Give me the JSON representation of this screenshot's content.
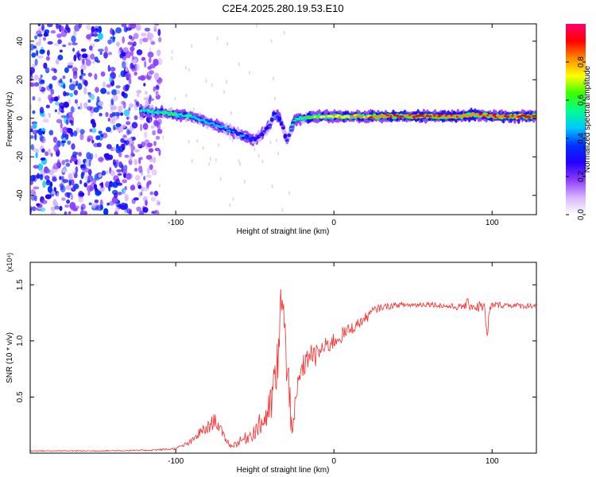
{
  "title": "C2E4.2025.280.19.53.E10",
  "chart_data": [
    {
      "type": "heatmap",
      "title": "C2E4.2025.280.19.53.E10",
      "xlabel": "Height of straight line (km)",
      "ylabel": "Frequency (Hz)",
      "xlim": [
        -192,
        128
      ],
      "ylim": [
        -50,
        49
      ],
      "xticks": [
        -100,
        0,
        100
      ],
      "xtick_labels": [
        "-100",
        "0",
        "100"
      ],
      "yticks": [
        -40,
        -20,
        0,
        20,
        40
      ],
      "ytick_labels": [
        "-40",
        "-20",
        "0",
        "20",
        "40"
      ],
      "grid": false,
      "colorbar": {
        "label": "Normalized spectral amplitude",
        "range": [
          0,
          1
        ],
        "ticks": [
          0.0,
          0.2,
          0.4,
          0.6,
          0.8
        ],
        "tick_labels": [
          "0.0",
          "0.2",
          "0.4",
          "0.6",
          "0.8"
        ],
        "colors": [
          "#ffffff",
          "#d6b4ff",
          "#8c3cff",
          "#2400ff",
          "#0032ff",
          "#00c8ff",
          "#00ff8c",
          "#3cff00",
          "#ffff00",
          "#ff8c00",
          "#ff0000",
          "#ff0070"
        ]
      },
      "ridge": {
        "x": [
          -122,
          -110,
          -100,
          -90,
          -80,
          -70,
          -60,
          -55,
          -50,
          -45,
          -40,
          -38,
          -35,
          -32,
          -30,
          -25,
          -20,
          -10,
          0,
          20,
          40,
          60,
          80,
          90,
          100,
          110,
          128
        ],
        "y": [
          4,
          3,
          2,
          1,
          -2,
          -5,
          -8,
          -10,
          -11,
          -8,
          -3,
          2,
          1,
          -5,
          -12,
          -1,
          0,
          1,
          1,
          1,
          1,
          1,
          1,
          2,
          1,
          1,
          1
        ],
        "amplitude": [
          0.5,
          0.55,
          0.55,
          0.5,
          0.45,
          0.45,
          0.4,
          0.4,
          0.35,
          0.35,
          0.3,
          0.4,
          0.35,
          0.3,
          0.3,
          0.55,
          0.6,
          0.7,
          0.75,
          0.8,
          0.9,
          0.9,
          0.85,
          0.8,
          0.85,
          0.9,
          0.9
        ]
      },
      "noise_region": {
        "x_from": -192,
        "x_to": -118,
        "level": 0.2
      }
    },
    {
      "type": "line",
      "xlabel": "Height of straight line (km)",
      "ylabel": "SNR (10 * v/v)",
      "scale_label": "(x10⁴)",
      "xlim": [
        -192,
        128
      ],
      "ylim": [
        0,
        1.7
      ],
      "xticks": [
        -100,
        0,
        100
      ],
      "xtick_labels": [
        "-100",
        "0",
        "100"
      ],
      "yticks": [
        0.5,
        1.0,
        1.5
      ],
      "ytick_labels": [
        "0.5",
        "1.0",
        "1.5"
      ],
      "grid": false,
      "color": "#ff2a2a",
      "series": [
        {
          "name": "SNR",
          "x": [
            -192,
            -150,
            -120,
            -110,
            -100,
            -90,
            -85,
            -80,
            -75,
            -70,
            -65,
            -60,
            -55,
            -50,
            -45,
            -40,
            -38,
            -35,
            -33,
            -31,
            -30,
            -28,
            -25,
            -22,
            -20,
            -18,
            -15,
            -12,
            -10,
            -5,
            0,
            5,
            10,
            15,
            20,
            25,
            30,
            40,
            50,
            60,
            70,
            80,
            85,
            90,
            95,
            96,
            97,
            98,
            100,
            110,
            120,
            128
          ],
          "y": [
            0.02,
            0.02,
            0.025,
            0.03,
            0.04,
            0.1,
            0.18,
            0.22,
            0.3,
            0.16,
            0.06,
            0.1,
            0.14,
            0.2,
            0.28,
            0.4,
            0.6,
            0.8,
            1.5,
            1.1,
            0.7,
            0.45,
            0.3,
            0.65,
            0.75,
            0.8,
            0.9,
            0.85,
            0.9,
            0.95,
            1.0,
            1.05,
            1.1,
            1.15,
            1.2,
            1.27,
            1.3,
            1.32,
            1.32,
            1.33,
            1.31,
            1.3,
            1.33,
            1.3,
            1.32,
            1.15,
            1.0,
            1.25,
            1.32,
            1.32,
            1.31,
            1.32
          ],
          "noise": [
            0.005,
            0.005,
            0.006,
            0.008,
            0.01,
            0.03,
            0.05,
            0.06,
            0.07,
            0.04,
            0.02,
            0.04,
            0.06,
            0.08,
            0.12,
            0.18,
            0.25,
            0.3,
            0.2,
            0.25,
            0.3,
            0.3,
            0.15,
            0.15,
            0.12,
            0.1,
            0.1,
            0.1,
            0.1,
            0.08,
            0.08,
            0.07,
            0.06,
            0.05,
            0.05,
            0.04,
            0.03,
            0.025,
            0.025,
            0.025,
            0.025,
            0.03,
            0.05,
            0.05,
            0.06,
            0.05,
            0.05,
            0.05,
            0.03,
            0.025,
            0.025,
            0.025
          ]
        }
      ]
    }
  ]
}
